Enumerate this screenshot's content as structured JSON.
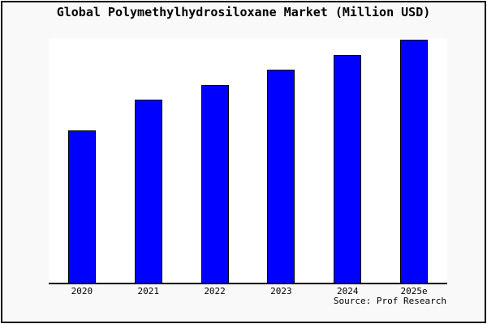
{
  "title": "Global Polymethylhydrosiloxane Market (Million USD)",
  "source_note": "Source: Prof Research",
  "colors": {
    "bar_fill": "#0000ff",
    "bar_border": "#000000",
    "page_background": "#f9f9f9",
    "plot_background": "#ffffff",
    "frame_border": "#0a0a0a",
    "text": "#000000"
  },
  "chart_data": {
    "type": "bar",
    "title": "Global Polymethylhydrosiloxane Market (Million USD)",
    "categories": [
      "2020",
      "2021",
      "2022",
      "2023",
      "2024",
      "2025e"
    ],
    "values": [
      62.5,
      75.1,
      81.4,
      87.6,
      93.6,
      100
    ],
    "value_scale": "relative index (no y-axis tick labels shown in chart; tallest bar 2025e = 100)",
    "ylim": [
      0,
      101
    ],
    "xlabel": "",
    "ylabel": "",
    "grid": false,
    "legend": false,
    "yaxis_ticks": [],
    "x_axis_line": true,
    "annotation": "Source: Prof Research"
  }
}
